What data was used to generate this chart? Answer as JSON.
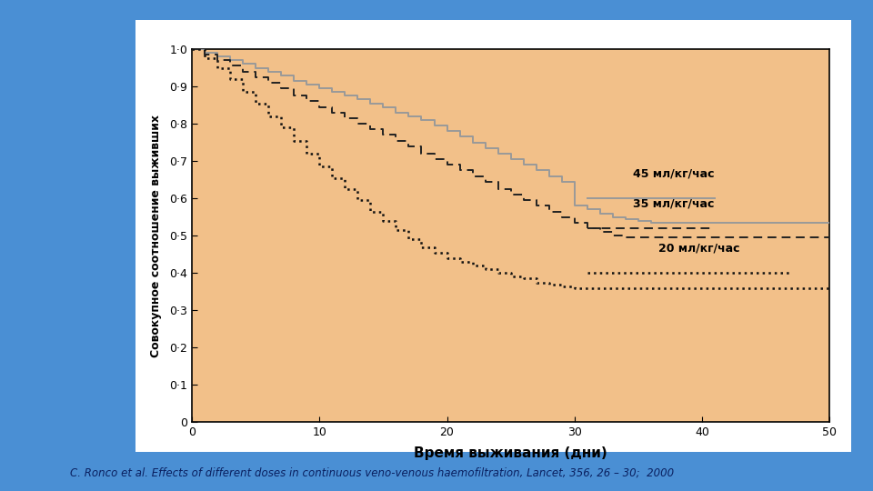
{
  "ylabel": "Совокупное соотношение выживших",
  "xlabel": "Время выживания (дни)",
  "xlim": [
    0,
    50
  ],
  "ylim": [
    0,
    1.0
  ],
  "ytick_values": [
    0,
    0.1,
    0.2,
    0.3,
    0.4,
    0.5,
    0.6,
    0.7,
    0.8,
    0.9,
    1.0
  ],
  "ytick_labels": [
    "0",
    "0·1",
    "0·2",
    "0·3",
    "0·4",
    "0·5",
    "0·6",
    "0·7",
    "0·8",
    "0·9",
    "1·0"
  ],
  "xticks": [
    0,
    10,
    20,
    30,
    40,
    50
  ],
  "plot_bg": "#F2C089",
  "outer_bg": "#4A8FD4",
  "white_box_bg": "#FFFFFF",
  "caption": "C. Ronco et al. Effects of different doses in continuous veno-venous haemofiltration, Lancet, 356, 26 – 30;  2000",
  "legend_45": "45 мл/кг/час",
  "legend_35": "35 мл/кг/час",
  "legend_20": "20 мл/кг/час",
  "curve_45_color": "#999999",
  "curve_35_color": "#222222",
  "curve_20_color": "#111111",
  "curve_45": {
    "x": [
      0,
      1,
      1,
      2,
      2,
      3,
      3,
      4,
      4,
      5,
      5,
      6,
      6,
      7,
      7,
      8,
      8,
      9,
      9,
      10,
      10,
      11,
      11,
      12,
      12,
      13,
      13,
      14,
      14,
      15,
      15,
      16,
      16,
      17,
      17,
      18,
      18,
      19,
      19,
      20,
      20,
      21,
      21,
      22,
      22,
      23,
      23,
      24,
      24,
      25,
      25,
      26,
      26,
      27,
      27,
      28,
      28,
      29,
      29,
      30,
      30,
      31,
      31,
      32,
      32,
      33,
      33,
      34,
      34,
      35,
      35,
      36,
      36,
      50
    ],
    "y": [
      1.0,
      1.0,
      0.99,
      0.99,
      0.98,
      0.98,
      0.97,
      0.97,
      0.96,
      0.96,
      0.95,
      0.95,
      0.94,
      0.94,
      0.93,
      0.93,
      0.915,
      0.915,
      0.905,
      0.905,
      0.895,
      0.895,
      0.885,
      0.885,
      0.875,
      0.875,
      0.865,
      0.865,
      0.855,
      0.855,
      0.845,
      0.845,
      0.83,
      0.83,
      0.82,
      0.82,
      0.81,
      0.81,
      0.795,
      0.795,
      0.78,
      0.78,
      0.765,
      0.765,
      0.75,
      0.75,
      0.735,
      0.735,
      0.72,
      0.72,
      0.705,
      0.705,
      0.69,
      0.69,
      0.675,
      0.675,
      0.66,
      0.66,
      0.645,
      0.645,
      0.58,
      0.58,
      0.57,
      0.57,
      0.56,
      0.56,
      0.55,
      0.55,
      0.545,
      0.545,
      0.54,
      0.54,
      0.535,
      0.535
    ]
  },
  "curve_35": {
    "x": [
      0,
      1,
      1,
      2,
      2,
      3,
      3,
      4,
      4,
      5,
      5,
      6,
      6,
      7,
      7,
      8,
      8,
      9,
      9,
      10,
      10,
      11,
      11,
      12,
      12,
      13,
      13,
      14,
      14,
      15,
      15,
      16,
      16,
      17,
      17,
      18,
      18,
      19,
      19,
      20,
      20,
      21,
      21,
      22,
      22,
      23,
      23,
      24,
      24,
      25,
      25,
      26,
      26,
      27,
      27,
      28,
      28,
      29,
      29,
      30,
      30,
      31,
      31,
      32,
      32,
      33,
      33,
      34,
      34,
      50
    ],
    "y": [
      1.0,
      1.0,
      0.985,
      0.985,
      0.97,
      0.97,
      0.955,
      0.955,
      0.94,
      0.94,
      0.925,
      0.925,
      0.91,
      0.91,
      0.895,
      0.895,
      0.875,
      0.875,
      0.86,
      0.86,
      0.845,
      0.845,
      0.83,
      0.83,
      0.815,
      0.815,
      0.8,
      0.8,
      0.785,
      0.785,
      0.77,
      0.77,
      0.755,
      0.755,
      0.74,
      0.74,
      0.72,
      0.72,
      0.705,
      0.705,
      0.69,
      0.69,
      0.675,
      0.675,
      0.66,
      0.66,
      0.645,
      0.645,
      0.625,
      0.625,
      0.61,
      0.61,
      0.595,
      0.595,
      0.58,
      0.58,
      0.565,
      0.565,
      0.55,
      0.55,
      0.535,
      0.535,
      0.52,
      0.52,
      0.51,
      0.51,
      0.5,
      0.5,
      0.495,
      0.495
    ]
  },
  "curve_20": {
    "x": [
      0,
      1,
      1,
      2,
      2,
      3,
      3,
      4,
      4,
      5,
      5,
      6,
      6,
      7,
      7,
      8,
      8,
      9,
      9,
      10,
      10,
      11,
      11,
      12,
      12,
      13,
      13,
      14,
      14,
      15,
      15,
      16,
      16,
      17,
      17,
      18,
      18,
      19,
      19,
      20,
      20,
      21,
      21,
      22,
      22,
      23,
      23,
      24,
      24,
      25,
      25,
      26,
      26,
      27,
      27,
      28,
      28,
      29,
      29,
      30,
      30,
      50
    ],
    "y": [
      1.0,
      1.0,
      0.975,
      0.975,
      0.95,
      0.95,
      0.92,
      0.92,
      0.885,
      0.885,
      0.855,
      0.855,
      0.82,
      0.82,
      0.79,
      0.79,
      0.755,
      0.755,
      0.72,
      0.72,
      0.685,
      0.685,
      0.655,
      0.655,
      0.625,
      0.625,
      0.595,
      0.595,
      0.565,
      0.565,
      0.54,
      0.54,
      0.515,
      0.515,
      0.49,
      0.49,
      0.47,
      0.47,
      0.455,
      0.455,
      0.44,
      0.44,
      0.43,
      0.43,
      0.42,
      0.42,
      0.41,
      0.41,
      0.4,
      0.4,
      0.39,
      0.39,
      0.385,
      0.385,
      0.375,
      0.375,
      0.37,
      0.37,
      0.365,
      0.365,
      0.36,
      0.36
    ]
  }
}
